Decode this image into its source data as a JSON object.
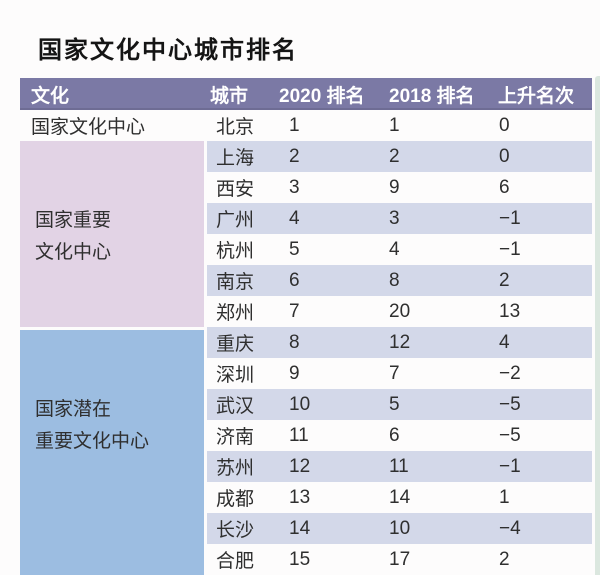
{
  "title": "国家文化中心城市排名",
  "colors": {
    "header_bg": "#7b79a5",
    "header_text": "#ffffff",
    "group_important_bg": "#e2d3e5",
    "group_potential_bg": "#9cbde1",
    "row_stripe_bg": "#d3d8e9",
    "body_text": "#2f2f2f"
  },
  "table": {
    "headers": [
      "文化",
      "城市",
      "2020 排名",
      "2018 排名",
      "上升名次"
    ],
    "group_labels": {
      "national": "国家文化中心",
      "important_line1": "国家重要",
      "important_line2": "文化中心",
      "potential_line1": "国家潜在",
      "potential_line2": "重要文化中心"
    },
    "rows": [
      {
        "city": "北京",
        "rank2020": "1",
        "rank2018": "1",
        "change": "0"
      },
      {
        "city": "上海",
        "rank2020": "2",
        "rank2018": "2",
        "change": "0"
      },
      {
        "city": "西安",
        "rank2020": "3",
        "rank2018": "9",
        "change": "6"
      },
      {
        "city": "广州",
        "rank2020": "4",
        "rank2018": "3",
        "change": "−1"
      },
      {
        "city": "杭州",
        "rank2020": "5",
        "rank2018": "4",
        "change": "−1"
      },
      {
        "city": "南京",
        "rank2020": "6",
        "rank2018": "8",
        "change": "2"
      },
      {
        "city": "郑州",
        "rank2020": "7",
        "rank2018": "20",
        "change": "13"
      },
      {
        "city": "重庆",
        "rank2020": "8",
        "rank2018": "12",
        "change": "4"
      },
      {
        "city": "深圳",
        "rank2020": "9",
        "rank2018": "7",
        "change": "−2"
      },
      {
        "city": "武汉",
        "rank2020": "10",
        "rank2018": "5",
        "change": "−5"
      },
      {
        "city": "济南",
        "rank2020": "11",
        "rank2018": "6",
        "change": "−5"
      },
      {
        "city": "苏州",
        "rank2020": "12",
        "rank2018": "11",
        "change": "−1"
      },
      {
        "city": "成都",
        "rank2020": "13",
        "rank2018": "14",
        "change": "1"
      },
      {
        "city": "长沙",
        "rank2020": "14",
        "rank2018": "10",
        "change": "−4"
      },
      {
        "city": "合肥",
        "rank2020": "15",
        "rank2018": "17",
        "change": "2"
      }
    ]
  },
  "chart_data": {
    "type": "table",
    "title": "国家文化中心城市排名",
    "columns": [
      "文化",
      "城市",
      "2020 排名",
      "2018 排名",
      "上升名次"
    ],
    "rows": [
      [
        "国家文化中心",
        "北京",
        1,
        1,
        0
      ],
      [
        "国家重要文化中心",
        "上海",
        2,
        2,
        0
      ],
      [
        "国家重要文化中心",
        "西安",
        3,
        9,
        6
      ],
      [
        "国家重要文化中心",
        "广州",
        4,
        3,
        -1
      ],
      [
        "国家重要文化中心",
        "杭州",
        5,
        4,
        -1
      ],
      [
        "国家重要文化中心",
        "南京",
        6,
        8,
        2
      ],
      [
        "国家重要文化中心",
        "郑州",
        7,
        20,
        13
      ],
      [
        "国家潜在重要文化中心",
        "重庆",
        8,
        12,
        4
      ],
      [
        "国家潜在重要文化中心",
        "深圳",
        9,
        7,
        -2
      ],
      [
        "国家潜在重要文化中心",
        "武汉",
        10,
        5,
        -5
      ],
      [
        "国家潜在重要文化中心",
        "济南",
        11,
        6,
        -5
      ],
      [
        "国家潜在重要文化中心",
        "苏州",
        12,
        11,
        -1
      ],
      [
        "国家潜在重要文化中心",
        "成都",
        13,
        14,
        1
      ],
      [
        "国家潜在重要文化中心",
        "长沙",
        14,
        10,
        -4
      ],
      [
        "国家潜在重要文化中心",
        "合肥",
        15,
        17,
        2
      ]
    ]
  }
}
